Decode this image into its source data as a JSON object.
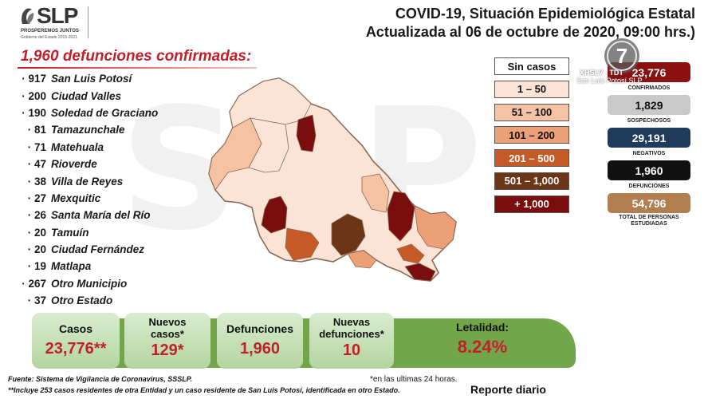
{
  "watermark": "SLP",
  "logo": {
    "wordmark": "SLP",
    "tagline": "PROSPEREMOS JUNTOS",
    "sub": "Gobierno del Estado 2015-2021"
  },
  "title": {
    "line1": "COVID-19, Situación Epidemiológica Estatal",
    "line2": "Actualizada al 06 de octubre de 2020, 09:00 hrs.)"
  },
  "deaths_heading": "1,960 defunciones confirmadas:",
  "municipalities": [
    {
      "count": "917",
      "name": "San Luis Potosí"
    },
    {
      "count": "200",
      "name": "Ciudad Valles"
    },
    {
      "count": "190",
      "name": "Soledad de Graciano"
    },
    {
      "count": "81",
      "name": "Tamazunchale"
    },
    {
      "count": "71",
      "name": "Matehuala"
    },
    {
      "count": "47",
      "name": "Rioverde"
    },
    {
      "count": "38",
      "name": "Villa de Reyes"
    },
    {
      "count": "27",
      "name": "Mexquitic"
    },
    {
      "count": "26",
      "name": "Santa María del Río"
    },
    {
      "count": "20",
      "name": "Tamuín"
    },
    {
      "count": "20",
      "name": "Ciudad Fernández"
    },
    {
      "count": "19",
      "name": "Matlapa"
    },
    {
      "count": "267",
      "name": "Otro Municipio"
    },
    {
      "count": "37",
      "name": "Otro Estado"
    }
  ],
  "legend": [
    {
      "label": "Sin casos",
      "color": "#ffffff",
      "text_color": "#111111"
    },
    {
      "label": "1 – 50",
      "color": "#fbe3d6",
      "text_color": "#111111"
    },
    {
      "label": "51 – 100",
      "color": "#f6c2a4",
      "text_color": "#111111"
    },
    {
      "label": "101 – 200",
      "color": "#eda077",
      "text_color": "#111111"
    },
    {
      "label": "201 – 500",
      "color": "#c65a26",
      "text_color": "#ffffff"
    },
    {
      "label": "501 – 1,000",
      "color": "#6b3516",
      "text_color": "#ffffff"
    },
    {
      "label": "+ 1,000",
      "color": "#7a0e0e",
      "text_color": "#ffffff"
    }
  ],
  "stats": {
    "confirmados": {
      "value": "23,776",
      "label": "CONFIRMADOS",
      "color": "#8b1010"
    },
    "sospechosos": {
      "value": "1,829",
      "label": "SOSPECHOSOS",
      "color": "#c9c9c9"
    },
    "negativos": {
      "value": "29,191",
      "label": "NEGATIVOS",
      "color": "#1f3b5c"
    },
    "defunciones": {
      "value": "1,960",
      "label": "DEFUNCIONES",
      "color": "#111111"
    },
    "total": {
      "value": "54,796",
      "label": "TOTAL DE PERSONAS ESTUDIADAS",
      "color": "#b07e4f"
    }
  },
  "tv": {
    "channel": "7",
    "line1": "XHSLV - TDT",
    "line2": "San Luis Potosí SLP"
  },
  "cards": {
    "casos": {
      "label": "Casos",
      "value": "23,776**"
    },
    "nuevos": {
      "label": "Nuevos casos*",
      "value": "129*"
    },
    "defunciones": {
      "label": "Defunciones",
      "value": "1,960"
    },
    "nuevas_def": {
      "label": "Nuevas defunciones*",
      "value": "10"
    },
    "letalidad": {
      "label": "Letalidad:",
      "value": "8.24%"
    }
  },
  "footer": {
    "source": "Fuente: Sistema de Vigilancia de Coronavirus, SSSLP.",
    "note": "**Incluye 253 casos residentes de otra Entidad y un caso residente de San Luis Potosí, identificada en otro Estado.",
    "last24": "*en las ultimas 24 horas.",
    "report": "Reporte diario"
  }
}
